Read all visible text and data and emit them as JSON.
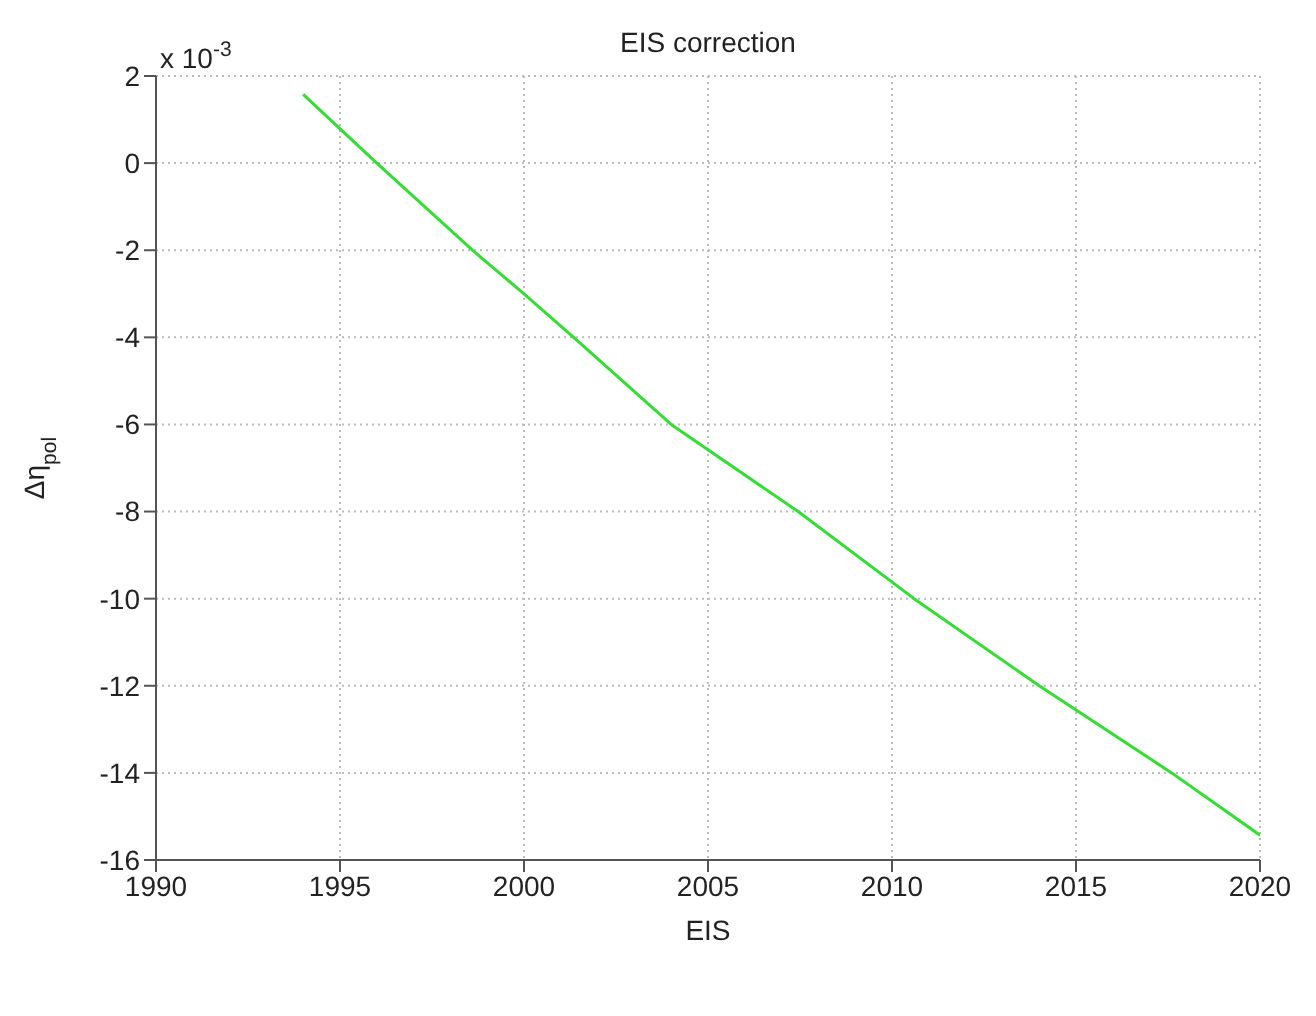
{
  "chart_data": {
    "type": "line",
    "title": "EIS correction",
    "xlabel": "EIS",
    "ylabel": "Δη$_{pol}$",
    "annotations": [
      "x 10$^{-3}$"
    ],
    "x": [
      1994,
      1996,
      1998.6,
      2000,
      2001.35,
      2004,
      2007.45,
      2010.6,
      2014,
      2017.6,
      2020
    ],
    "series": [
      {
        "color": "#33dd33",
        "values": [
          1.58,
          0,
          -2,
          -3,
          -4,
          -6,
          -8,
          -10,
          -12,
          -14,
          -15.43
        ]
      }
    ],
    "xlim": [
      1990,
      2020
    ],
    "xticks": [
      1990,
      1995,
      2000,
      2005,
      2010,
      2015,
      2020
    ],
    "ylim": [
      -16,
      2
    ],
    "yticks": [
      -16,
      -14,
      -12,
      -10,
      -8,
      -6,
      -4,
      -2,
      0,
      2
    ],
    "grid": true,
    "marker": "none",
    "line_style": "solid"
  }
}
